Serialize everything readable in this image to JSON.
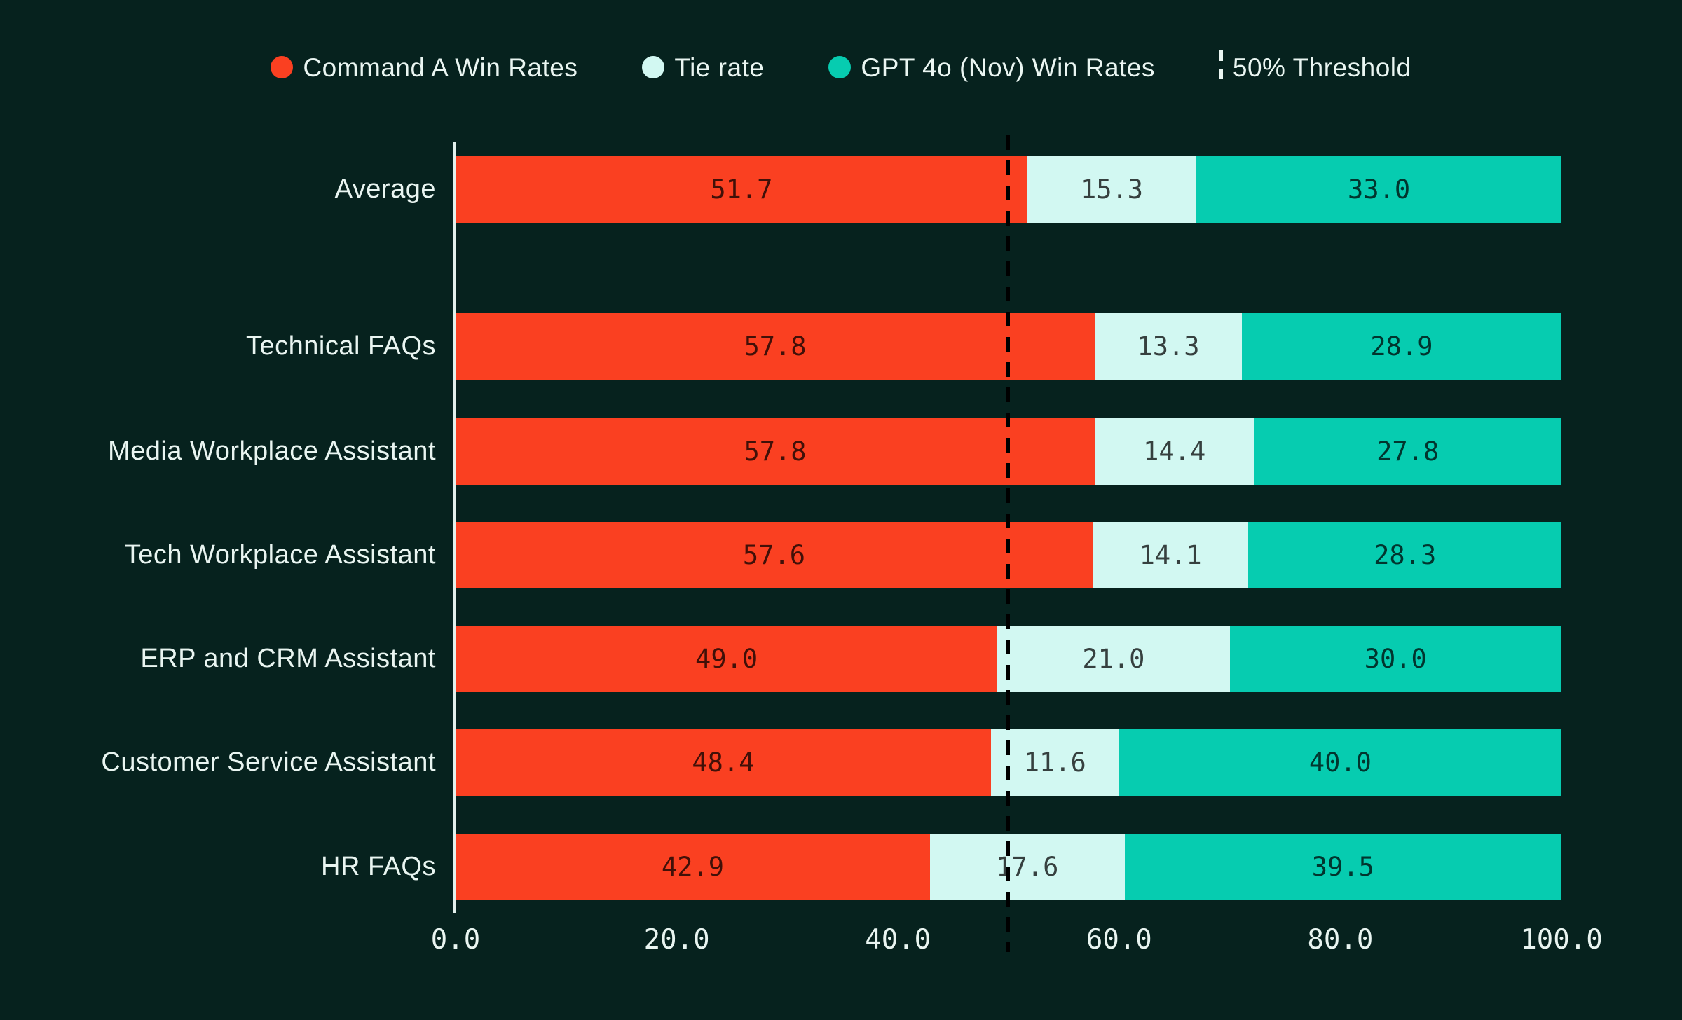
{
  "colors": {
    "background": "#06221e",
    "command_a": "#fa4021",
    "tie": "#d2f8f2",
    "gpt4o": "#06ccb0",
    "axis_line": "#e2f0ec",
    "threshold_line": "#000000",
    "text_light": "#e9f5f1",
    "value_text": "rgba(0,0,0,0.74)"
  },
  "legend": {
    "items": [
      {
        "label": "Command A Win Rates",
        "symbol": "dot",
        "color": "#fa4021"
      },
      {
        "label": "Tie rate",
        "symbol": "dot",
        "color": "#d2f8f2"
      },
      {
        "label": "GPT 4o (Nov) Win Rates",
        "symbol": "dot",
        "color": "#06ccb0"
      },
      {
        "label": "50% Threshold",
        "symbol": "dashed-line",
        "color": "#eaf6f2"
      }
    ]
  },
  "chart_data": {
    "type": "bar",
    "orientation": "horizontal",
    "stacked": true,
    "title": "",
    "xlabel": "",
    "ylabel": "",
    "xlim": [
      0,
      100
    ],
    "x_ticks": [
      "0.0",
      "20.0",
      "40.0",
      "60.0",
      "80.0",
      "100.0"
    ],
    "x_tick_values": [
      0,
      20,
      40,
      60,
      80,
      100
    ],
    "grid": false,
    "legend_position": "top",
    "value_labels": "inside-center, one decimal",
    "threshold": {
      "value": 50,
      "label": "50% Threshold",
      "style": "black dashed vertical line"
    },
    "categories": [
      "Average",
      "Technical FAQs",
      "Media Workplace Assistant",
      "Tech Workplace Assistant",
      "ERP and CRM Assistant",
      "Customer Service Assistant",
      "HR FAQs"
    ],
    "series": [
      {
        "name": "Command A Win Rates",
        "color": "#fa4021",
        "values": [
          51.7,
          57.8,
          57.8,
          57.6,
          49.0,
          48.4,
          42.9
        ]
      },
      {
        "name": "Tie rate",
        "color": "#d2f8f2",
        "values": [
          15.3,
          13.3,
          14.4,
          14.1,
          21.0,
          11.6,
          17.6
        ]
      },
      {
        "name": "GPT 4o (Nov) Win Rates",
        "color": "#06ccb0",
        "values": [
          33.0,
          28.9,
          27.8,
          28.3,
          30.0,
          40.0,
          39.5
        ]
      }
    ]
  }
}
